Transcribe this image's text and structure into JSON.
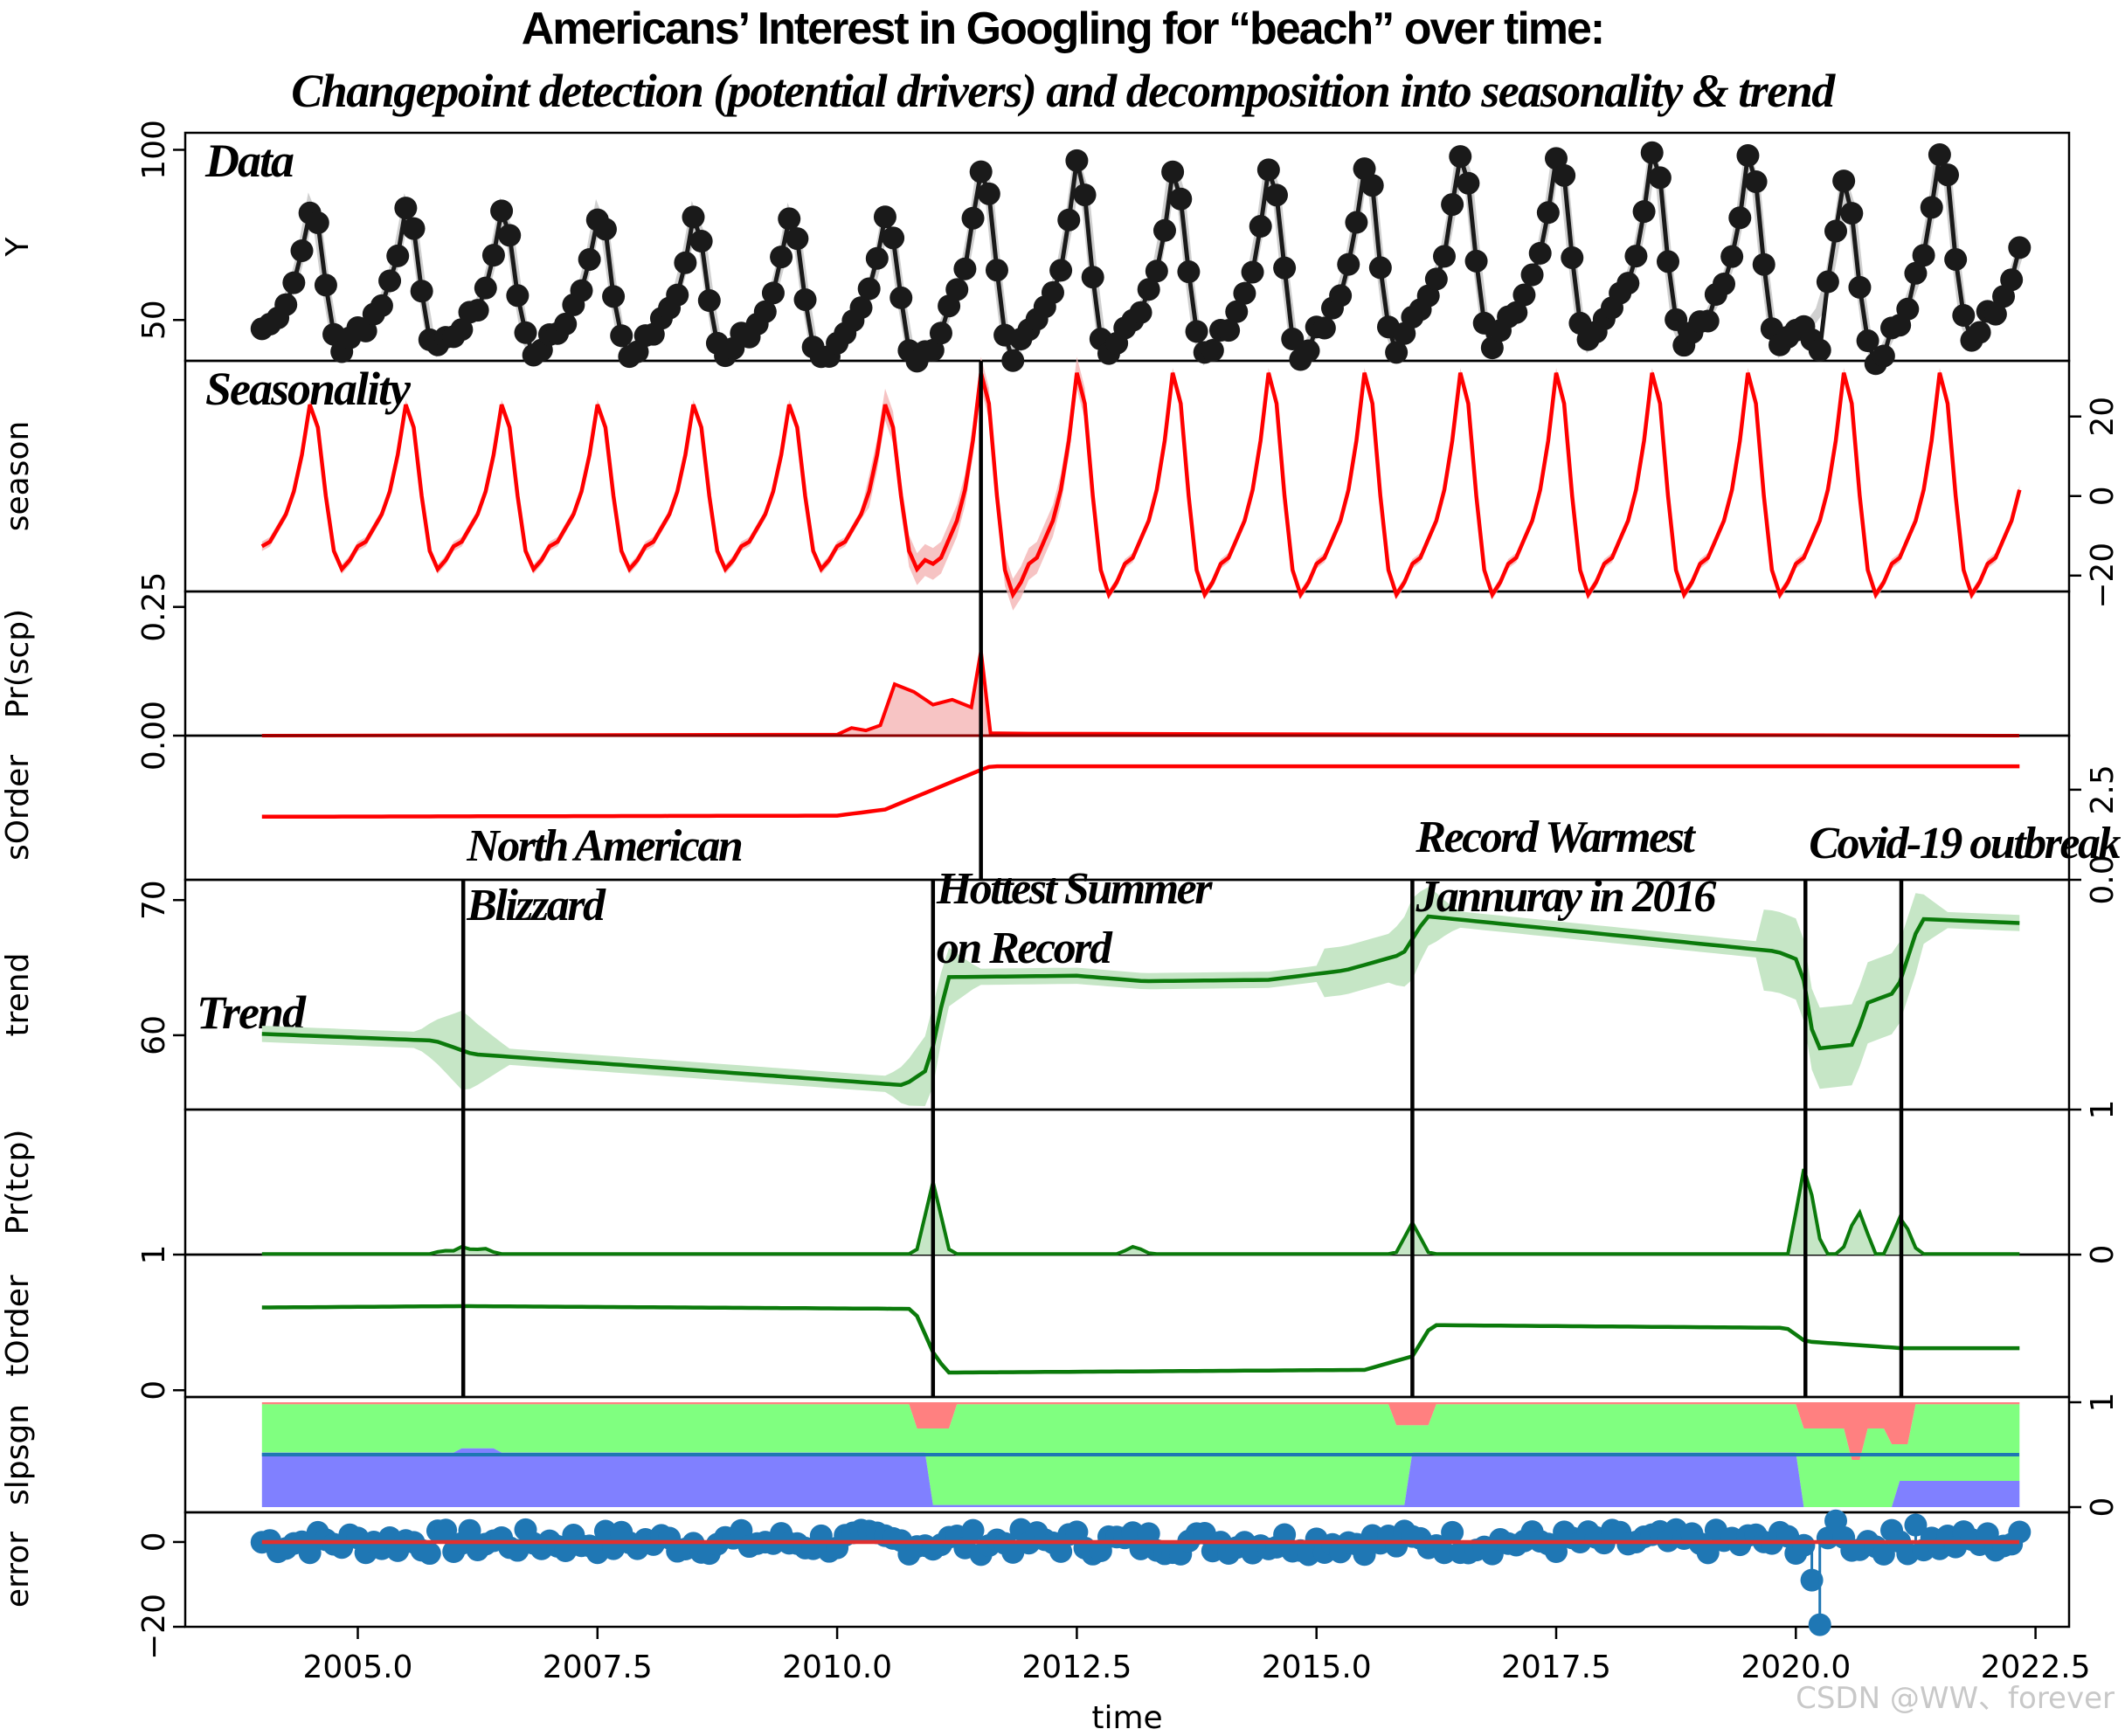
{
  "title": "Americans’  Interest in Googling for “beach” over time:",
  "subtitle": "Changepoint detection (potential drivers)  and decomposition into seasonality & trend",
  "watermark": "CSDN @WW、forever",
  "chart_data": {
    "type": "line",
    "xlabel": "time",
    "xlim": [
      2003.2,
      2022.85
    ],
    "xticks": [
      "2005.0",
      "2007.5",
      "2010.0",
      "2012.5",
      "2015.0",
      "2017.5",
      "2020.0",
      "2022.5"
    ],
    "data_start": 2004.0,
    "data_end": 2022.33,
    "panels": [
      {
        "key": "Y",
        "ylabel": "Y",
        "tag": "Data",
        "ylim": [
          38,
          105
        ],
        "ticks": [
          {
            "label": "50",
            "value": 50
          },
          {
            "label": "100",
            "value": 100
          }
        ],
        "side": "left"
      },
      {
        "key": "season",
        "ylabel": "season",
        "tag": "Seasonality",
        "ylim": [
          -24,
          34
        ],
        "ticks": [
          {
            "label": "−20",
            "value": -20
          },
          {
            "label": "0",
            "value": 0
          },
          {
            "label": "20",
            "value": 20
          }
        ],
        "side": "right"
      },
      {
        "key": "pr_scp",
        "ylabel": "Pr(scp)",
        "ylim": [
          0,
          0.28
        ],
        "ticks": [
          {
            "label": "0.00",
            "value": 0
          },
          {
            "label": "0.25",
            "value": 0.25
          }
        ],
        "side": "left"
      },
      {
        "key": "sorder",
        "ylabel": "sOrder",
        "ylim": [
          0,
          4.0
        ],
        "ticks": [
          {
            "label": "0.0",
            "value": 0
          },
          {
            "label": "2.5",
            "value": 2.5
          }
        ],
        "side": "right"
      },
      {
        "key": "trend",
        "ylabel": "trend",
        "tag": "Trend",
        "ylim": [
          54.5,
          71.5
        ],
        "ticks": [
          {
            "label": "60",
            "value": 60
          },
          {
            "label": "70",
            "value": 70
          }
        ],
        "side": "left"
      },
      {
        "key": "pr_tcp",
        "ylabel": "Pr(tcp)",
        "ylim": [
          0,
          1
        ],
        "ticks": [
          {
            "label": "0",
            "value": 0
          },
          {
            "label": "1",
            "value": 1
          }
        ],
        "side": "right"
      },
      {
        "key": "torder",
        "ylabel": "tOrder",
        "ylim": [
          -0.05,
          1
        ],
        "ticks": [
          {
            "label": "0",
            "value": 0
          },
          {
            "label": "1",
            "value": 1
          }
        ],
        "side": "left"
      },
      {
        "key": "slpsgn",
        "ylabel": "slpsgn",
        "ylim": [
          -0.05,
          1.05
        ],
        "ticks": [
          {
            "label": "0",
            "value": 0
          },
          {
            "label": "1",
            "value": 1
          }
        ],
        "side": "right"
      },
      {
        "key": "error",
        "ylabel": "error",
        "ylim": [
          -20,
          7
        ],
        "ticks": [
          {
            "label": "−20",
            "value": -20
          },
          {
            "label": "0",
            "value": 0
          }
        ],
        "side": "left"
      }
    ],
    "annotations": [
      {
        "lines": [
          "North American",
          "Blizzard"
        ],
        "x": 2006.1
      },
      {
        "lines": [
          "Hottest Summer",
          "on Record"
        ],
        "x": 2011.0
      },
      {
        "lines": [
          "Record Warmest",
          "Jannuray in 2016"
        ],
        "x": 2016.0
      },
      {
        "lines": [
          "Covid-19 outbreak"
        ],
        "x": 2020.1
      }
    ],
    "seasonal_changepoint": 2011.5,
    "trend_changepoints": [
      2006.1,
      2011.0,
      2016.0,
      2020.1,
      2021.1
    ],
    "trend_segments": [
      {
        "t": 2004.0,
        "v": 60.1
      },
      {
        "t": 2005.8,
        "v": 59.6
      },
      {
        "t": 2006.2,
        "v": 58.6
      },
      {
        "t": 2010.7,
        "v": 56.3
      },
      {
        "t": 2010.95,
        "v": 57.5
      },
      {
        "t": 2011.15,
        "v": 64.3
      },
      {
        "t": 2012.5,
        "v": 64.4
      },
      {
        "t": 2013.2,
        "v": 64.0
      },
      {
        "t": 2014.5,
        "v": 64.1
      },
      {
        "t": 2015.3,
        "v": 64.8
      },
      {
        "t": 2015.9,
        "v": 66.0
      },
      {
        "t": 2016.15,
        "v": 68.8
      },
      {
        "t": 2019.8,
        "v": 66.2
      },
      {
        "t": 2020.05,
        "v": 65.5
      },
      {
        "t": 2020.2,
        "v": 59.0
      },
      {
        "t": 2020.6,
        "v": 59.3
      },
      {
        "t": 2020.75,
        "v": 62.4
      },
      {
        "t": 2021.05,
        "v": 63.2
      },
      {
        "t": 2021.3,
        "v": 68.6
      },
      {
        "t": 2022.33,
        "v": 68.3
      }
    ],
    "torder_segments": [
      {
        "t": 2004.0,
        "v": 0.61
      },
      {
        "t": 2006.1,
        "v": 0.62
      },
      {
        "t": 2010.8,
        "v": 0.6
      },
      {
        "t": 2011.0,
        "v": 0.28
      },
      {
        "t": 2011.15,
        "v": 0.13
      },
      {
        "t": 2015.5,
        "v": 0.15
      },
      {
        "t": 2016.0,
        "v": 0.25
      },
      {
        "t": 2016.2,
        "v": 0.48
      },
      {
        "t": 2019.9,
        "v": 0.46
      },
      {
        "t": 2020.1,
        "v": 0.36
      },
      {
        "t": 2021.1,
        "v": 0.31
      },
      {
        "t": 2022.33,
        "v": 0.31
      }
    ],
    "sorder_segments": [
      {
        "t": 2004.0,
        "v": 1.75
      },
      {
        "t": 2010.0,
        "v": 1.78
      },
      {
        "t": 2010.5,
        "v": 1.95
      },
      {
        "t": 2011.5,
        "v": 3.05
      },
      {
        "t": 2011.6,
        "v": 3.15
      },
      {
        "t": 2022.33,
        "v": 3.15
      }
    ],
    "pr_scp_peaks": [
      {
        "t": 2010.0,
        "v": 0.002
      },
      {
        "t": 2010.15,
        "v": 0.015
      },
      {
        "t": 2010.3,
        "v": 0.01
      },
      {
        "t": 2010.45,
        "v": 0.02
      },
      {
        "t": 2010.6,
        "v": 0.1
      },
      {
        "t": 2010.8,
        "v": 0.085
      },
      {
        "t": 2011.0,
        "v": 0.06
      },
      {
        "t": 2011.2,
        "v": 0.07
      },
      {
        "t": 2011.4,
        "v": 0.055
      },
      {
        "t": 2011.5,
        "v": 0.165
      },
      {
        "t": 2011.6,
        "v": 0.005
      },
      {
        "t": 2012.0,
        "v": 0.004
      }
    ],
    "pr_tcp_peaks": [
      {
        "t": 2005.9,
        "v": 0.03
      },
      {
        "t": 2006.1,
        "v": 0.06
      },
      {
        "t": 2006.3,
        "v": 0.05
      },
      {
        "t": 2011.0,
        "v": 0.5
      },
      {
        "t": 2013.1,
        "v": 0.06
      },
      {
        "t": 2016.0,
        "v": 0.22
      },
      {
        "t": 2020.1,
        "v": 0.65
      },
      {
        "t": 2020.65,
        "v": 0.32
      },
      {
        "t": 2021.1,
        "v": 0.28
      }
    ],
    "season_amplitude_pre": 23,
    "season_amplitude_post": 31,
    "legend": []
  }
}
